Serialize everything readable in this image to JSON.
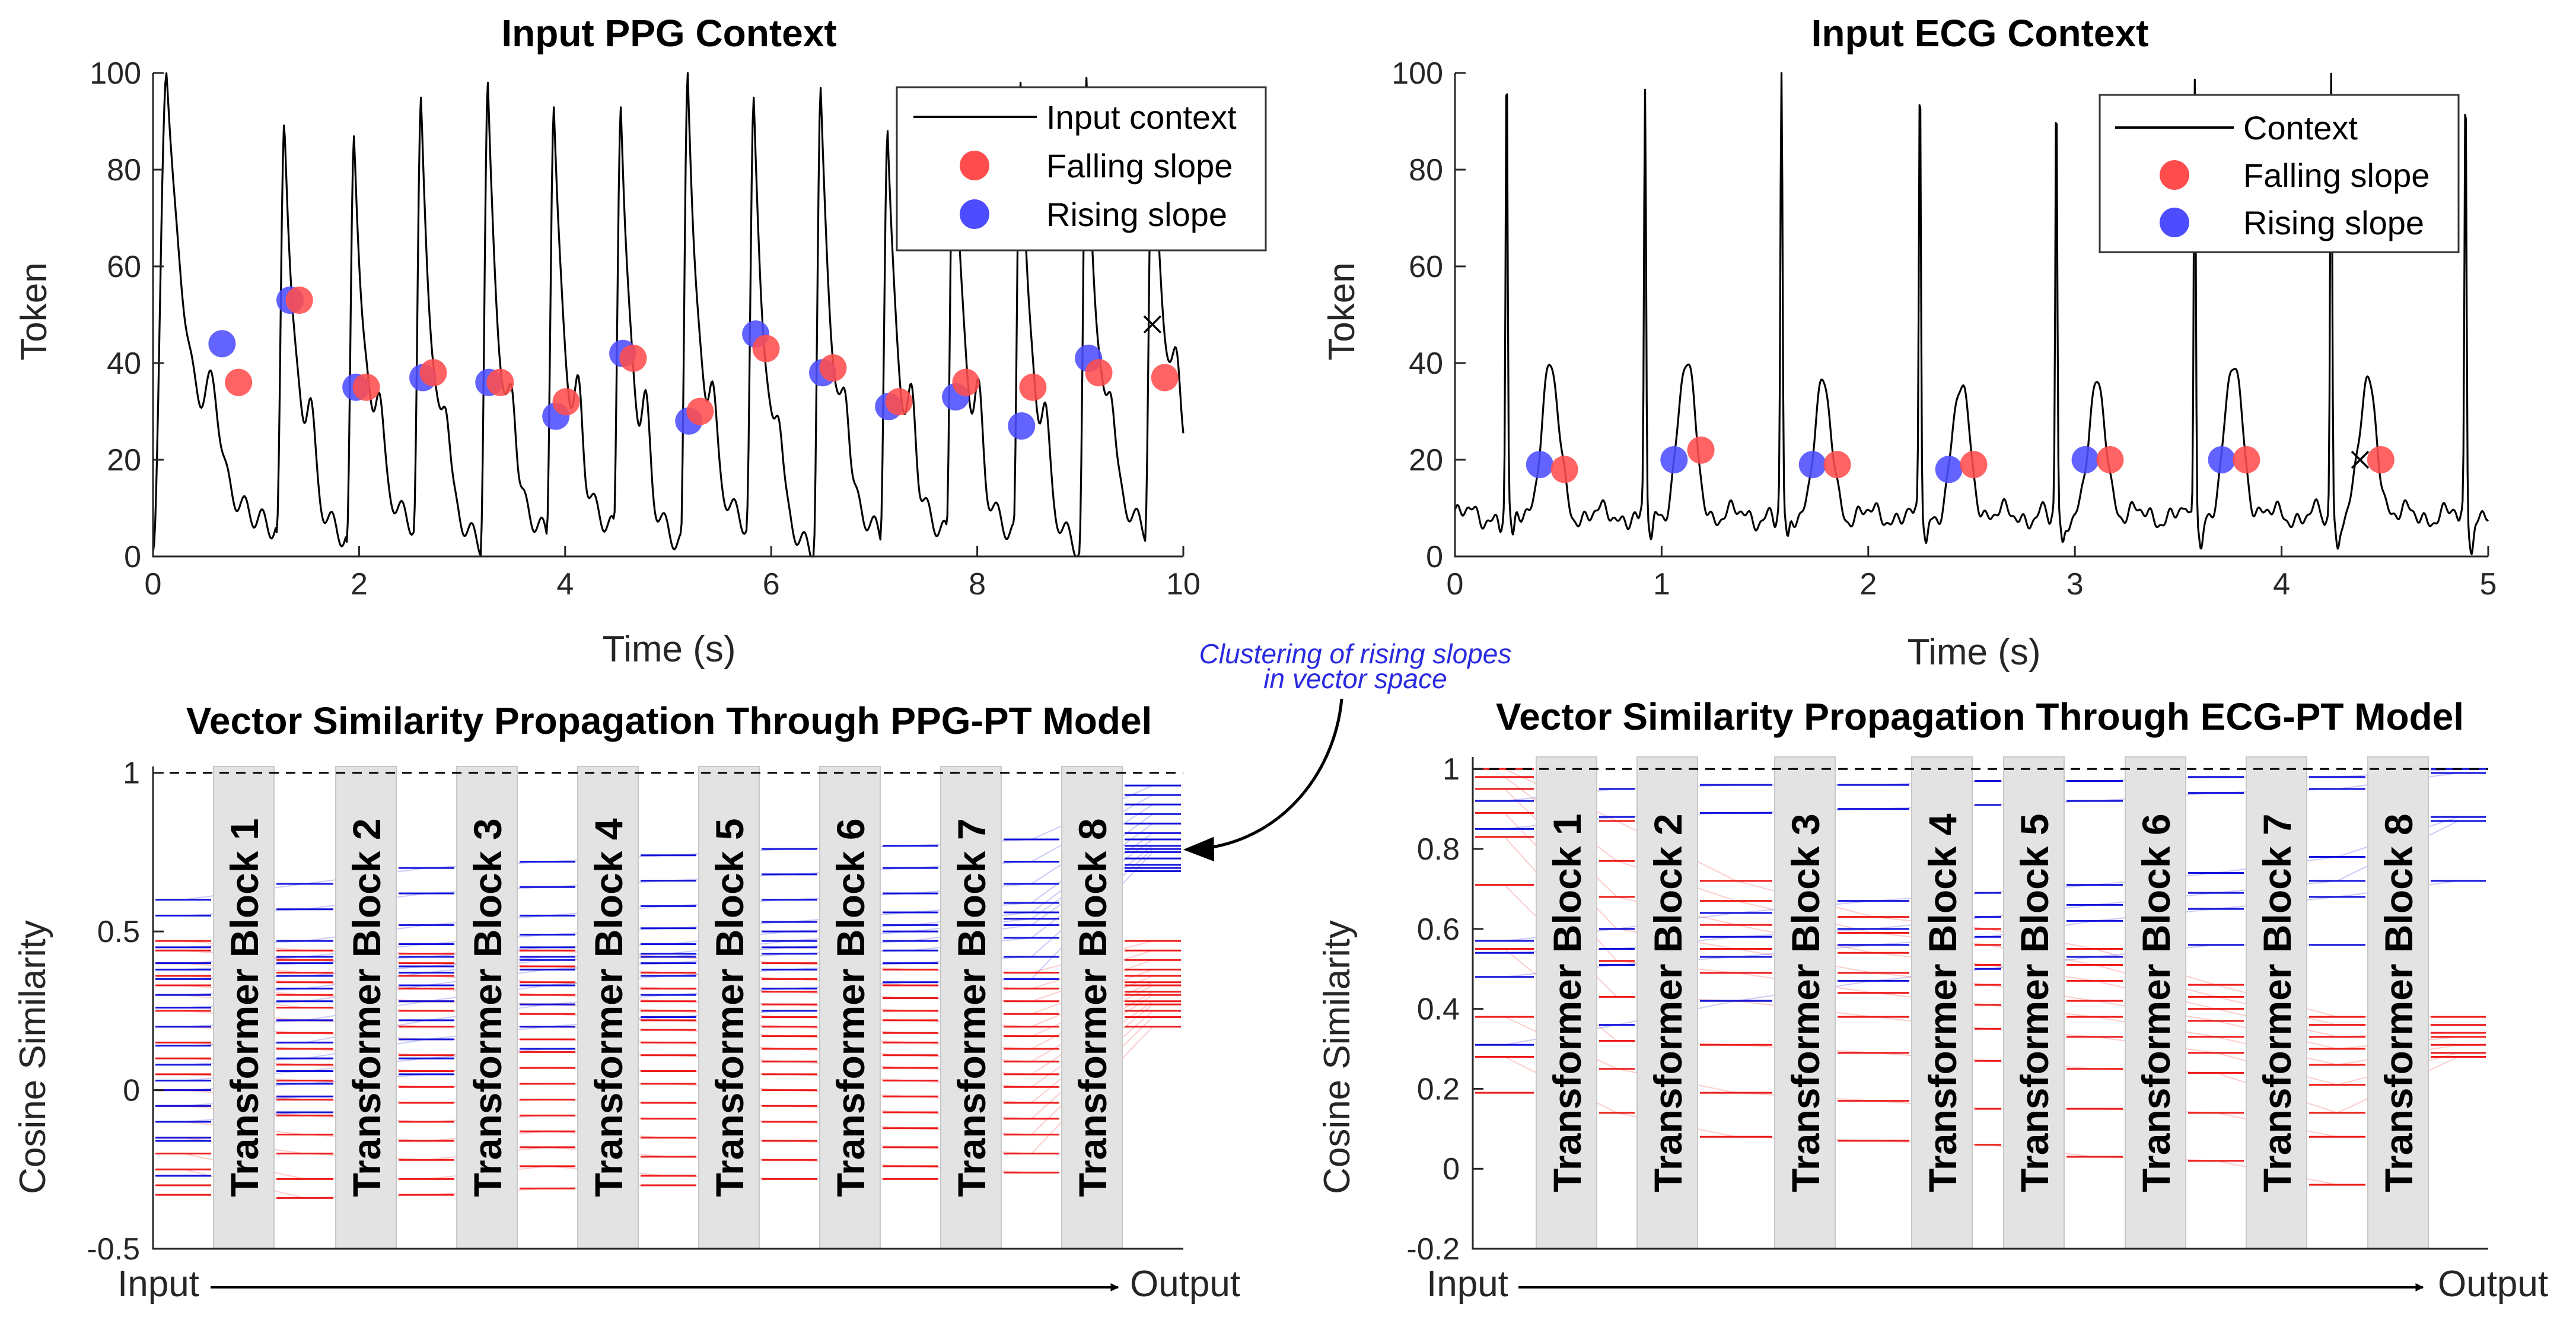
{
  "chart_data": [
    {
      "type": "line",
      "title": "Input PPG Context",
      "xlabel": "Time (s)",
      "ylabel": "Token",
      "xlim": [
        0,
        10
      ],
      "ylim": [
        0,
        100
      ],
      "xticks": [
        "0",
        "2",
        "4",
        "6",
        "8",
        "10"
      ],
      "yticks": [
        "0",
        "20",
        "40",
        "60",
        "80",
        "100"
      ],
      "legend": {
        "position": "top-right",
        "entries": [
          "Input context",
          "Falling slope",
          "Rising slope"
        ]
      },
      "signal": {
        "name": "Input context",
        "kind": "ppg",
        "beat_times": [
          0.0,
          1.2,
          1.88,
          2.53,
          3.18,
          3.82,
          4.47,
          5.12,
          5.76,
          6.41,
          7.06,
          7.7,
          8.35,
          8.99,
          9.63
        ],
        "peaks": [
          100,
          90,
          87,
          95,
          98,
          93,
          93,
          100,
          95,
          97,
          88,
          97,
          98,
          99,
          97
        ],
        "valleys": [
          1,
          5,
          3,
          6,
          2,
          4,
          5,
          2,
          6,
          0,
          4,
          4,
          4,
          1,
          5,
          13
        ]
      },
      "falling_slope": {
        "name": "Falling slope",
        "color": "#ff4d4d",
        "x": [
          0.83,
          1.42,
          2.07,
          2.72,
          3.37,
          4.01,
          4.66,
          5.31,
          5.95,
          6.6,
          7.24,
          7.89,
          8.54,
          9.18,
          9.82
        ],
        "y": [
          36,
          53,
          35,
          38,
          36,
          32,
          41,
          30,
          43,
          39,
          32,
          36,
          35,
          38,
          37
        ]
      },
      "rising_slope": {
        "name": "Rising slope",
        "color": "#4d4dff",
        "x": [
          0.67,
          1.33,
          1.97,
          2.62,
          3.26,
          3.91,
          4.56,
          5.2,
          5.85,
          6.5,
          7.14,
          7.79,
          8.43,
          9.08
        ],
        "y": [
          44,
          53,
          35,
          37,
          36,
          29,
          42,
          28,
          46,
          38,
          31,
          33,
          27,
          41
        ]
      },
      "marker_x": {
        "x": 9.7,
        "y": 48
      }
    },
    {
      "type": "line",
      "title": "Input ECG Context",
      "xlabel": "Time (s)",
      "ylabel": "Token",
      "xlim": [
        0,
        5
      ],
      "ylim": [
        0,
        100
      ],
      "xticks": [
        "0",
        "1",
        "2",
        "3",
        "4",
        "5"
      ],
      "yticks": [
        "0",
        "20",
        "40",
        "60",
        "80",
        "100"
      ],
      "legend": {
        "position": "top-right",
        "entries": [
          "Context",
          "Falling slope",
          "Rising slope"
        ]
      },
      "signal": {
        "name": "Context",
        "kind": "ecg",
        "r_times": [
          0.25,
          0.92,
          1.58,
          2.25,
          2.91,
          3.58,
          4.24,
          4.89
        ],
        "r_peaks": [
          100,
          95,
          100,
          100,
          95,
          100,
          100,
          98
        ],
        "t_times": [
          0.46,
          1.12,
          1.78,
          2.45,
          3.11,
          3.77,
          4.42
        ],
        "t_peaks": [
          42,
          43,
          38,
          38,
          38,
          43,
          39
        ]
      },
      "falling_slope": {
        "name": "Falling slope",
        "color": "#ff4d4d",
        "x": [
          0.53,
          1.19,
          1.85,
          2.51,
          3.17,
          3.83,
          4.48
        ],
        "y": [
          18,
          22,
          19,
          19,
          20,
          20,
          20
        ]
      },
      "rising_slope": {
        "name": "Rising slope",
        "color": "#4d4dff",
        "x": [
          0.41,
          1.06,
          1.73,
          2.39,
          3.05,
          3.71
        ],
        "y": [
          19,
          20,
          19,
          18,
          20,
          20
        ]
      },
      "marker_x": {
        "x": 4.38,
        "y": 20
      }
    },
    {
      "type": "other",
      "title": "Vector Similarity Propagation Through PPG-PT Model",
      "ylabel": "Cosine Similarity",
      "ylim": [
        -0.5,
        1.02
      ],
      "yticks": [
        "-0.5",
        "0",
        "0.5",
        "1"
      ],
      "input_label": "Input",
      "output_label": "Output",
      "blocks": [
        "Transformer Block 1",
        "Transformer Block 2",
        "Transformer Block 3",
        "Transformer Block 4",
        "Transformer Block 5",
        "Transformer Block 6",
        "Transformer Block 7",
        "Transformer Block 8"
      ],
      "rising_color": "#1414dc",
      "falling_color": "#ee1c1c",
      "rising_stages": [
        [
          0.6,
          0.55,
          0.45,
          0.4,
          0.38,
          0.35,
          0.3,
          0.26,
          0.2,
          0.14,
          0.08,
          0.03,
          0.0,
          -0.05,
          -0.1,
          -0.15,
          -0.16,
          -0.27
        ],
        [
          0.65,
          0.57,
          0.47,
          0.42,
          0.4,
          0.36,
          0.32,
          0.28,
          0.22,
          0.15,
          0.1,
          0.06,
          0.02,
          -0.02,
          -0.07
        ],
        [
          0.7,
          0.62,
          0.52,
          0.46,
          0.42,
          0.39,
          0.37,
          0.33,
          0.28,
          0.22,
          0.16,
          0.1,
          0.05
        ],
        [
          0.72,
          0.64,
          0.55,
          0.49,
          0.45,
          0.42,
          0.41,
          0.38,
          0.33,
          0.27,
          0.2,
          0.13
        ],
        [
          0.74,
          0.66,
          0.58,
          0.51,
          0.46,
          0.43,
          0.42,
          0.4,
          0.36,
          0.3,
          0.23
        ],
        [
          0.76,
          0.68,
          0.6,
          0.53,
          0.5,
          0.47,
          0.45,
          0.43,
          0.38,
          0.32,
          0.25
        ],
        [
          0.77,
          0.7,
          0.62,
          0.56,
          0.52,
          0.5,
          0.47,
          0.44,
          0.4,
          0.34
        ],
        [
          0.79,
          0.72,
          0.65,
          0.59,
          0.56,
          0.54,
          0.52,
          0.48,
          0.42,
          0.35
        ],
        [
          0.96,
          0.93,
          0.9,
          0.87,
          0.84,
          0.81,
          0.79,
          0.77,
          0.76,
          0.75,
          0.73,
          0.71,
          0.7,
          0.69
        ]
      ],
      "falling_stages": [
        [
          0.47,
          0.44,
          0.4,
          0.36,
          0.33,
          0.3,
          0.25,
          0.2,
          0.15,
          0.1,
          0.05,
          0.0,
          -0.05,
          -0.1,
          -0.15,
          -0.2,
          -0.25,
          -0.3,
          -0.33
        ],
        [
          0.44,
          0.41,
          0.37,
          0.34,
          0.3,
          0.26,
          0.22,
          0.18,
          0.13,
          0.08,
          0.03,
          -0.03,
          -0.08,
          -0.14,
          -0.2,
          -0.28,
          -0.34
        ],
        [
          0.43,
          0.4,
          0.36,
          0.32,
          0.28,
          0.25,
          0.2,
          0.16,
          0.11,
          0.06,
          0.01,
          -0.04,
          -0.1,
          -0.16,
          -0.22,
          -0.28,
          -0.33
        ],
        [
          0.44,
          0.39,
          0.34,
          0.3,
          0.27,
          0.24,
          0.2,
          0.16,
          0.12,
          0.07,
          0.02,
          -0.03,
          -0.08,
          -0.13,
          -0.18,
          -0.24,
          -0.31
        ],
        [
          0.42,
          0.37,
          0.32,
          0.28,
          0.25,
          0.22,
          0.19,
          0.15,
          0.11,
          0.06,
          0.02,
          -0.04,
          -0.09,
          -0.15,
          -0.21,
          -0.27,
          -0.3
        ],
        [
          0.4,
          0.35,
          0.31,
          0.27,
          0.23,
          0.2,
          0.17,
          0.13,
          0.09,
          0.05,
          0.0,
          -0.05,
          -0.1,
          -0.16,
          -0.22,
          -0.28
        ],
        [
          0.38,
          0.33,
          0.29,
          0.25,
          0.22,
          0.18,
          0.15,
          0.11,
          0.07,
          0.03,
          -0.02,
          -0.07,
          -0.12,
          -0.18,
          -0.24,
          -0.28
        ],
        [
          0.37,
          0.32,
          0.28,
          0.24,
          0.2,
          0.17,
          0.13,
          0.09,
          0.05,
          0.01,
          -0.04,
          -0.09,
          -0.14,
          -0.2,
          -0.26
        ],
        [
          0.47,
          0.44,
          0.41,
          0.38,
          0.36,
          0.34,
          0.33,
          0.31,
          0.3,
          0.28,
          0.27,
          0.25,
          0.23,
          0.2
        ]
      ],
      "annotation": {
        "line1": "Clustering of rising slopes",
        "line2": "in vector space"
      }
    },
    {
      "type": "other",
      "title": "Vector Similarity Propagation Through ECG-PT Model",
      "ylabel": "Cosine Similarity",
      "ylim": [
        -0.2,
        1.03
      ],
      "yticks": [
        "-0.2",
        "0",
        "0.2",
        "0.4",
        "0.6",
        "0.8",
        "1"
      ],
      "input_label": "Input",
      "output_label": "Output",
      "blocks": [
        "Transformer Block 1",
        "Transformer Block 2",
        "Transformer Block 3",
        "Transformer Block 4",
        "Transformer Block 5",
        "Transformer Block 6",
        "Transformer Block 7",
        "Transformer Block 8"
      ],
      "rising_color": "#1414dc",
      "falling_color": "#ee1c1c",
      "rising_stages": [
        [
          0.92,
          0.85,
          0.57,
          0.54,
          0.48,
          0.31
        ],
        [
          0.95,
          0.88,
          0.6,
          0.55,
          0.51,
          0.36
        ],
        [
          0.96,
          0.89,
          0.64,
          0.58,
          0.53,
          0.42
        ],
        [
          0.96,
          0.9,
          0.67,
          0.6,
          0.56,
          0.47
        ],
        [
          0.97,
          0.91,
          0.69,
          0.63,
          0.58,
          0.5
        ],
        [
          0.97,
          0.92,
          0.71,
          0.66,
          0.62,
          0.53
        ],
        [
          0.98,
          0.94,
          0.74,
          0.69,
          0.65,
          0.56
        ],
        [
          0.98,
          0.95,
          0.78,
          0.72,
          0.68,
          0.56
        ],
        [
          1.0,
          0.99,
          0.88,
          0.87,
          0.72
        ]
      ],
      "falling_stages": [
        [
          1.0,
          0.98,
          0.95,
          0.89,
          0.83,
          0.71,
          0.55,
          0.38,
          0.28,
          0.19
        ],
        [
          0.87,
          0.77,
          0.68,
          0.6,
          0.52,
          0.43,
          0.32,
          0.25,
          0.14
        ],
        [
          0.72,
          0.67,
          0.61,
          0.55,
          0.49,
          0.42,
          0.31,
          0.19,
          0.08
        ],
        [
          0.63,
          0.59,
          0.54,
          0.49,
          0.44,
          0.38,
          0.29,
          0.17,
          0.07
        ],
        [
          0.6,
          0.56,
          0.51,
          0.46,
          0.41,
          0.35,
          0.27,
          0.15,
          0.06
        ],
        [
          0.55,
          0.51,
          0.47,
          0.42,
          0.38,
          0.33,
          0.25,
          0.15,
          0.03
        ],
        [
          0.46,
          0.43,
          0.4,
          0.37,
          0.33,
          0.29,
          0.24,
          0.14,
          0.02
        ],
        [
          0.38,
          0.36,
          0.33,
          0.3,
          0.26,
          0.21,
          0.14,
          0.08,
          -0.04
        ],
        [
          0.38,
          0.36,
          0.34,
          0.33,
          0.31,
          0.29,
          0.28
        ]
      ]
    }
  ]
}
